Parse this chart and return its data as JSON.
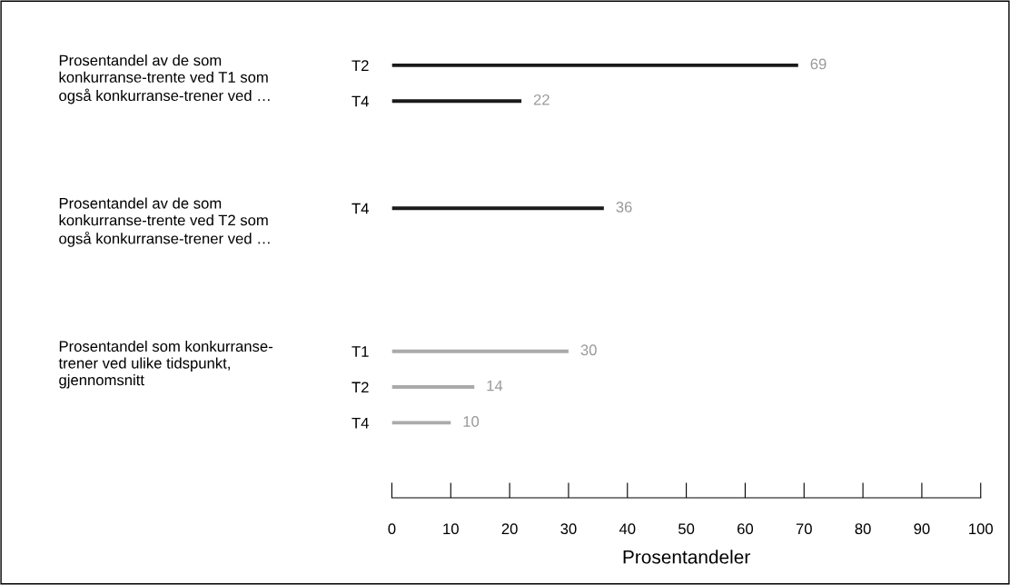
{
  "chart_data": {
    "type": "bar",
    "orientation": "horizontal",
    "categories": [
      "T2",
      "T4",
      null,
      null,
      "T4",
      null,
      null,
      null,
      "T1",
      "T2",
      "T4"
    ],
    "values": [
      69,
      22,
      null,
      null,
      36,
      null,
      null,
      null,
      30,
      14,
      10
    ],
    "colors": [
      "#1a1a1a",
      "#1a1a1a",
      null,
      null,
      "#1a1a1a",
      null,
      null,
      null,
      "#aaaaaa",
      "#aaaaaa",
      "#aaaaaa"
    ],
    "data_labels": true,
    "xlim": [
      0,
      100
    ],
    "xticks": [
      0,
      10,
      20,
      30,
      40,
      50,
      60,
      70,
      80,
      90,
      100
    ],
    "xlabel": "Prosentandeler",
    "annotations": [
      "Prosentandel av de som\nkonkurranse-trente ved T1 som\nogså konkurranse-trener ved …",
      "Prosentandel av de som\nkonkurranse-trente ved T2 som\nogså konkurranse-trener ved …",
      "Prosentandel som konkurranse-\ntrener ved ulike tidspunkt,\ngjennomsnitt"
    ]
  }
}
